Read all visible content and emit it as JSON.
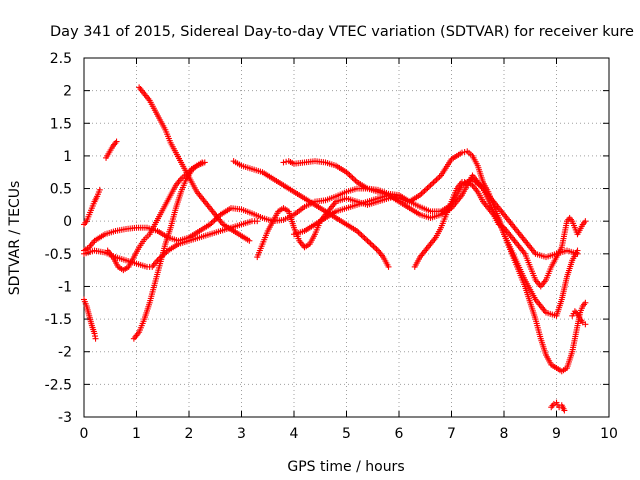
{
  "chart_data": {
    "type": "scatter",
    "title": "Day 341 of 2015, Sidereal Day-to-day VTEC variation (SDTVAR) for receiver kure",
    "xlabel": "GPS time / hours",
    "ylabel": "SDTVAR / TECUs",
    "xlim": [
      0,
      10
    ],
    "ylim": [
      -3,
      2.5
    ],
    "xticks": [
      "0",
      "1",
      "2",
      "3",
      "4",
      "5",
      "6",
      "7",
      "8",
      "9",
      "10"
    ],
    "yticks": [
      "-3",
      "-2.5",
      "-2",
      "-1.5",
      "-1",
      "-0.5",
      "0",
      "0.5",
      "1",
      "1.5",
      "2",
      "2.5"
    ],
    "grid": true,
    "legend": "none",
    "marker": "+",
    "series": [
      {
        "color": "#ff0000",
        "points": [
          [
            0.0,
            -0.05
          ],
          [
            0.05,
            0.0
          ],
          [
            0.1,
            0.1
          ],
          [
            0.15,
            0.2
          ],
          [
            0.2,
            0.3
          ],
          [
            0.25,
            0.38
          ],
          [
            0.3,
            0.48
          ]
        ]
      },
      {
        "color": "#ff0000",
        "points": [
          [
            0.42,
            0.97
          ],
          [
            0.55,
            1.15
          ],
          [
            0.62,
            1.22
          ]
        ]
      },
      {
        "color": "#ff0000",
        "points": [
          [
            0.0,
            -1.2
          ],
          [
            0.05,
            -1.3
          ],
          [
            0.1,
            -1.45
          ],
          [
            0.15,
            -1.6
          ],
          [
            0.2,
            -1.72
          ],
          [
            0.22,
            -1.8
          ]
        ]
      },
      {
        "color": "#ff0000",
        "points": [
          [
            0.0,
            -0.45
          ],
          [
            0.1,
            -0.4
          ],
          [
            0.2,
            -0.3
          ],
          [
            0.4,
            -0.2
          ],
          [
            0.6,
            -0.15
          ],
          [
            0.8,
            -0.12
          ],
          [
            1.0,
            -0.1
          ],
          [
            1.2,
            -0.1
          ],
          [
            1.4,
            -0.15
          ],
          [
            1.6,
            -0.25
          ],
          [
            1.8,
            -0.3
          ],
          [
            2.0,
            -0.25
          ],
          [
            2.2,
            -0.15
          ],
          [
            2.4,
            -0.05
          ],
          [
            2.6,
            0.1
          ],
          [
            2.8,
            0.2
          ],
          [
            3.0,
            0.18
          ],
          [
            3.2,
            0.12
          ],
          [
            3.4,
            0.05
          ],
          [
            3.6,
            0.0
          ],
          [
            3.8,
            0.02
          ],
          [
            4.0,
            0.1
          ],
          [
            4.2,
            0.22
          ],
          [
            4.4,
            0.3
          ],
          [
            4.6,
            0.32
          ],
          [
            4.8,
            0.38
          ],
          [
            5.0,
            0.45
          ],
          [
            5.2,
            0.5
          ],
          [
            5.4,
            0.5
          ],
          [
            5.6,
            0.48
          ],
          [
            5.8,
            0.42
          ],
          [
            6.0,
            0.4
          ],
          [
            6.2,
            0.3
          ],
          [
            6.4,
            0.22
          ],
          [
            6.6,
            0.15
          ],
          [
            6.8,
            0.15
          ],
          [
            7.0,
            0.25
          ],
          [
            7.2,
            0.55
          ],
          [
            7.4,
            0.65
          ],
          [
            7.6,
            0.5
          ],
          [
            7.8,
            0.3
          ],
          [
            8.0,
            0.1
          ],
          [
            8.2,
            -0.1
          ],
          [
            8.4,
            -0.3
          ],
          [
            8.6,
            -0.5
          ],
          [
            8.8,
            -0.55
          ],
          [
            9.0,
            -0.5
          ],
          [
            9.2,
            -0.45
          ],
          [
            9.4,
            -0.5
          ]
        ]
      },
      {
        "color": "#ff0000",
        "points": [
          [
            0.0,
            -0.5
          ],
          [
            0.2,
            -0.45
          ],
          [
            0.4,
            -0.48
          ],
          [
            0.6,
            -0.55
          ],
          [
            0.8,
            -0.6
          ],
          [
            1.0,
            -0.65
          ],
          [
            1.2,
            -0.7
          ],
          [
            1.3,
            -0.7
          ],
          [
            1.4,
            -0.6
          ],
          [
            1.6,
            -0.45
          ],
          [
            1.8,
            -0.35
          ],
          [
            2.0,
            -0.3
          ],
          [
            2.2,
            -0.25
          ],
          [
            2.4,
            -0.2
          ],
          [
            2.6,
            -0.15
          ],
          [
            2.8,
            -0.1
          ],
          [
            3.0,
            -0.05
          ],
          [
            3.2,
            0.0
          ],
          [
            3.3,
            0.0
          ]
        ]
      },
      {
        "color": "#ff0000",
        "points": [
          [
            0.45,
            -0.45
          ],
          [
            0.55,
            -0.55
          ],
          [
            0.65,
            -0.7
          ],
          [
            0.75,
            -0.75
          ],
          [
            0.85,
            -0.7
          ],
          [
            0.95,
            -0.55
          ],
          [
            1.05,
            -0.4
          ],
          [
            1.15,
            -0.28
          ],
          [
            1.25,
            -0.2
          ],
          [
            1.35,
            -0.05
          ],
          [
            1.45,
            0.1
          ],
          [
            1.55,
            0.25
          ],
          [
            1.65,
            0.4
          ],
          [
            1.75,
            0.55
          ],
          [
            1.85,
            0.65
          ],
          [
            1.95,
            0.72
          ],
          [
            2.05,
            0.8
          ],
          [
            2.15,
            0.85
          ],
          [
            2.3,
            0.9
          ]
        ]
      },
      {
        "color": "#ff0000",
        "points": [
          [
            0.95,
            -1.8
          ],
          [
            1.05,
            -1.7
          ],
          [
            1.15,
            -1.5
          ],
          [
            1.25,
            -1.25
          ],
          [
            1.35,
            -0.95
          ],
          [
            1.45,
            -0.65
          ],
          [
            1.55,
            -0.35
          ],
          [
            1.65,
            -0.1
          ],
          [
            1.75,
            0.2
          ],
          [
            1.85,
            0.45
          ],
          [
            1.95,
            0.65
          ],
          [
            2.05,
            0.78
          ],
          [
            2.15,
            0.85
          ],
          [
            2.25,
            0.9
          ]
        ]
      },
      {
        "color": "#ff0000",
        "points": [
          [
            1.05,
            2.05
          ],
          [
            1.15,
            1.95
          ],
          [
            1.25,
            1.85
          ],
          [
            1.35,
            1.7
          ],
          [
            1.45,
            1.55
          ],
          [
            1.55,
            1.4
          ],
          [
            1.65,
            1.2
          ],
          [
            1.75,
            1.05
          ],
          [
            1.85,
            0.9
          ],
          [
            1.95,
            0.75
          ],
          [
            2.05,
            0.6
          ],
          [
            2.15,
            0.45
          ],
          [
            2.25,
            0.35
          ],
          [
            2.35,
            0.25
          ],
          [
            2.45,
            0.15
          ],
          [
            2.55,
            0.05
          ],
          [
            2.65,
            -0.05
          ],
          [
            2.75,
            -0.1
          ],
          [
            2.85,
            -0.15
          ],
          [
            2.95,
            -0.2
          ],
          [
            3.05,
            -0.25
          ],
          [
            3.15,
            -0.3
          ]
        ]
      },
      {
        "color": "#ff0000",
        "points": [
          [
            2.85,
            0.92
          ],
          [
            3.0,
            0.85
          ],
          [
            3.2,
            0.8
          ],
          [
            3.4,
            0.75
          ],
          [
            3.6,
            0.65
          ],
          [
            3.8,
            0.55
          ],
          [
            4.0,
            0.45
          ],
          [
            4.2,
            0.35
          ],
          [
            4.4,
            0.25
          ],
          [
            4.6,
            0.15
          ],
          [
            4.8,
            0.05
          ],
          [
            5.0,
            -0.05
          ],
          [
            5.2,
            -0.15
          ],
          [
            5.4,
            -0.3
          ],
          [
            5.6,
            -0.45
          ],
          [
            5.7,
            -0.55
          ],
          [
            5.8,
            -0.7
          ]
        ]
      },
      {
        "color": "#ff0000",
        "points": [
          [
            3.3,
            -0.55
          ],
          [
            3.4,
            -0.35
          ],
          [
            3.5,
            -0.15
          ],
          [
            3.6,
            0.0
          ],
          [
            3.7,
            0.15
          ],
          [
            3.8,
            0.2
          ],
          [
            3.9,
            0.15
          ],
          [
            4.0,
            -0.1
          ],
          [
            4.1,
            -0.3
          ],
          [
            4.2,
            -0.4
          ],
          [
            4.3,
            -0.35
          ],
          [
            4.4,
            -0.2
          ],
          [
            4.5,
            0.0
          ],
          [
            4.6,
            0.1
          ],
          [
            4.7,
            0.2
          ],
          [
            4.8,
            0.3
          ],
          [
            5.0,
            0.35
          ],
          [
            5.2,
            0.3
          ],
          [
            5.4,
            0.25
          ],
          [
            5.6,
            0.3
          ],
          [
            5.8,
            0.35
          ],
          [
            6.0,
            0.4
          ]
        ]
      },
      {
        "color": "#ff0000",
        "points": [
          [
            3.8,
            0.9
          ],
          [
            3.9,
            0.92
          ],
          [
            4.0,
            0.88
          ],
          [
            4.2,
            0.9
          ],
          [
            4.4,
            0.92
          ],
          [
            4.6,
            0.9
          ],
          [
            4.8,
            0.85
          ],
          [
            5.0,
            0.75
          ],
          [
            5.2,
            0.6
          ],
          [
            5.4,
            0.5
          ],
          [
            5.6,
            0.45
          ],
          [
            5.8,
            0.4
          ],
          [
            6.0,
            0.35
          ],
          [
            6.2,
            0.3
          ],
          [
            6.4,
            0.4
          ],
          [
            6.6,
            0.55
          ],
          [
            6.8,
            0.7
          ],
          [
            7.0,
            0.95
          ],
          [
            7.2,
            1.05
          ],
          [
            7.3,
            1.07
          ],
          [
            7.4,
            1.0
          ],
          [
            7.5,
            0.85
          ],
          [
            7.6,
            0.6
          ],
          [
            7.7,
            0.45
          ],
          [
            7.8,
            0.25
          ],
          [
            7.9,
            0.05
          ],
          [
            8.0,
            -0.2
          ],
          [
            8.1,
            -0.4
          ],
          [
            8.2,
            -0.6
          ],
          [
            8.3,
            -0.8
          ],
          [
            8.4,
            -1.0
          ],
          [
            8.5,
            -1.25
          ],
          [
            8.6,
            -1.5
          ],
          [
            8.7,
            -1.8
          ],
          [
            8.8,
            -2.05
          ],
          [
            8.9,
            -2.2
          ],
          [
            9.0,
            -2.25
          ],
          [
            9.1,
            -2.3
          ],
          [
            9.2,
            -2.25
          ],
          [
            9.3,
            -2.0
          ],
          [
            9.4,
            -1.6
          ],
          [
            9.45,
            -1.4
          ],
          [
            9.5,
            -1.3
          ],
          [
            9.55,
            -1.25
          ]
        ]
      },
      {
        "color": "#ff0000",
        "points": [
          [
            4.0,
            -0.2
          ],
          [
            4.2,
            -0.15
          ],
          [
            4.4,
            -0.05
          ],
          [
            4.6,
            0.05
          ],
          [
            4.8,
            0.15
          ],
          [
            5.0,
            0.2
          ],
          [
            5.2,
            0.25
          ],
          [
            5.4,
            0.3
          ],
          [
            5.6,
            0.35
          ],
          [
            5.8,
            0.4
          ],
          [
            6.0,
            0.3
          ],
          [
            6.2,
            0.2
          ],
          [
            6.4,
            0.1
          ],
          [
            6.6,
            0.05
          ],
          [
            6.8,
            0.1
          ],
          [
            7.0,
            0.2
          ],
          [
            7.2,
            0.4
          ],
          [
            7.4,
            0.7
          ],
          [
            7.6,
            0.5
          ],
          [
            7.8,
            0.15
          ],
          [
            7.9,
            0.0
          ],
          [
            8.0,
            -0.2
          ],
          [
            8.2,
            -0.55
          ],
          [
            8.4,
            -0.9
          ],
          [
            8.6,
            -1.2
          ],
          [
            8.8,
            -1.4
          ],
          [
            9.0,
            -1.45
          ],
          [
            9.1,
            -1.2
          ],
          [
            9.2,
            -0.85
          ],
          [
            9.3,
            -0.6
          ],
          [
            9.4,
            -0.45
          ]
        ]
      },
      {
        "color": "#ff0000",
        "points": [
          [
            6.3,
            -0.7
          ],
          [
            6.4,
            -0.55
          ],
          [
            6.5,
            -0.45
          ],
          [
            6.6,
            -0.35
          ],
          [
            6.7,
            -0.25
          ],
          [
            6.8,
            -0.1
          ],
          [
            6.9,
            0.1
          ],
          [
            7.0,
            0.3
          ],
          [
            7.1,
            0.5
          ],
          [
            7.2,
            0.6
          ],
          [
            7.3,
            0.6
          ],
          [
            7.4,
            0.55
          ],
          [
            7.5,
            0.45
          ],
          [
            7.6,
            0.3
          ],
          [
            7.7,
            0.2
          ],
          [
            7.8,
            0.1
          ],
          [
            7.9,
            -0.05
          ],
          [
            8.0,
            -0.1
          ],
          [
            8.2,
            -0.3
          ],
          [
            8.4,
            -0.5
          ],
          [
            8.5,
            -0.7
          ],
          [
            8.6,
            -0.9
          ],
          [
            8.7,
            -1.0
          ],
          [
            8.8,
            -0.9
          ],
          [
            8.9,
            -0.7
          ],
          [
            9.0,
            -0.55
          ],
          [
            9.1,
            -0.4
          ],
          [
            9.2,
            0.0
          ],
          [
            9.25,
            0.05
          ],
          [
            9.3,
            0.0
          ],
          [
            9.4,
            -0.2
          ],
          [
            9.5,
            -0.05
          ],
          [
            9.55,
            0.0
          ]
        ]
      },
      {
        "color": "#ff0000",
        "points": [
          [
            8.9,
            -2.85
          ],
          [
            8.95,
            -2.8
          ],
          [
            9.0,
            -2.78
          ],
          [
            9.05,
            -2.85
          ],
          [
            9.1,
            -2.82
          ],
          [
            9.15,
            -2.9
          ]
        ]
      },
      {
        "color": "#ff0000",
        "points": [
          [
            9.3,
            -1.45
          ],
          [
            9.35,
            -1.38
          ],
          [
            9.4,
            -1.42
          ],
          [
            9.45,
            -1.5
          ],
          [
            9.5,
            -1.55
          ],
          [
            9.55,
            -1.58
          ]
        ]
      }
    ]
  }
}
